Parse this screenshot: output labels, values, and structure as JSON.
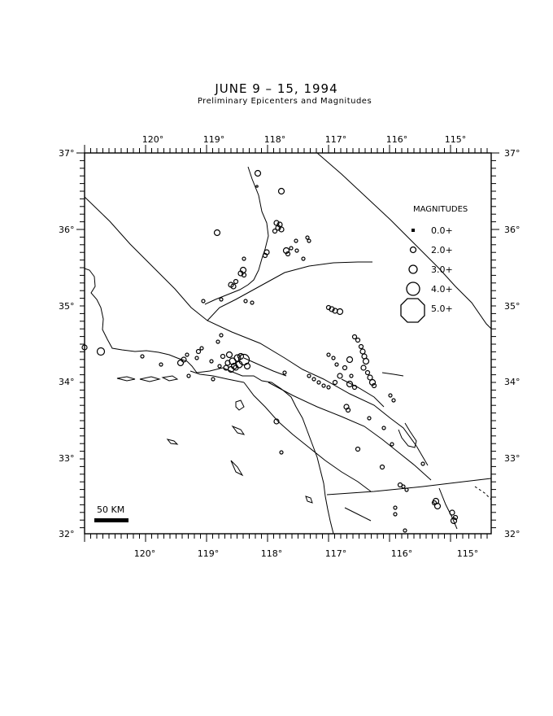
{
  "map": {
    "title": "JUNE 9 – 15, 1994",
    "subtitle": "Preliminary Epicenters and Magnitudes",
    "longitudes": [
      "120°",
      "119°",
      "118°",
      "117°",
      "116°",
      "115°"
    ],
    "latitudes": [
      "37°",
      "36°",
      "35°",
      "34°",
      "33°",
      "32°"
    ],
    "legend": {
      "title": "MAGNITUDES",
      "items": [
        "0.0+",
        "2.0+",
        "3.0+",
        "4.0+",
        "5.0+"
      ]
    },
    "scale_bar": "50 KM"
  }
}
